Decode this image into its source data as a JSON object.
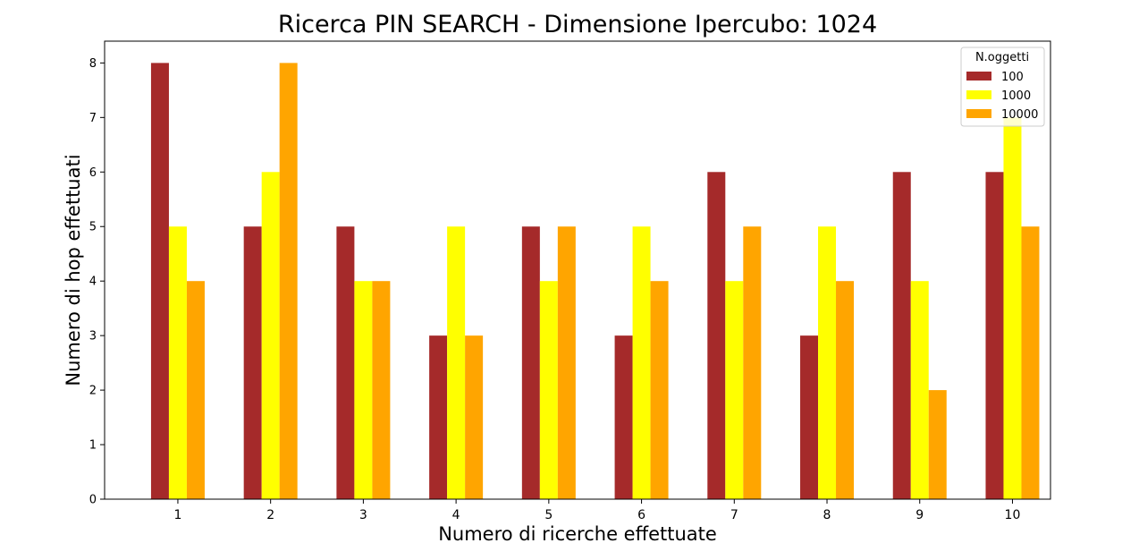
{
  "chart_data": {
    "type": "bar",
    "title": "Ricerca PIN SEARCH - Dimensione Ipercubo: 1024",
    "xlabel": "Numero di ricerche effettuate",
    "ylabel": "Numero di hop effettuati",
    "categories": [
      "1",
      "2",
      "3",
      "4",
      "5",
      "6",
      "7",
      "8",
      "9",
      "10"
    ],
    "series": [
      {
        "name": "100",
        "color": "#a52a2a",
        "values": [
          8,
          5,
          5,
          3,
          5,
          3,
          6,
          3,
          6,
          6
        ]
      },
      {
        "name": "1000",
        "color": "#ffff00",
        "values": [
          5,
          6,
          4,
          5,
          4,
          5,
          4,
          5,
          4,
          7
        ]
      },
      {
        "name": "10000",
        "color": "#ffa500",
        "values": [
          4,
          8,
          4,
          3,
          5,
          4,
          5,
          4,
          2,
          5
        ]
      }
    ],
    "yticks": [
      "0",
      "1",
      "2",
      "3",
      "4",
      "5",
      "6",
      "7",
      "8"
    ],
    "ylim": [
      0,
      8.4
    ],
    "grid": false,
    "legend": {
      "title": "N.oggetti",
      "position": "top-right"
    }
  }
}
